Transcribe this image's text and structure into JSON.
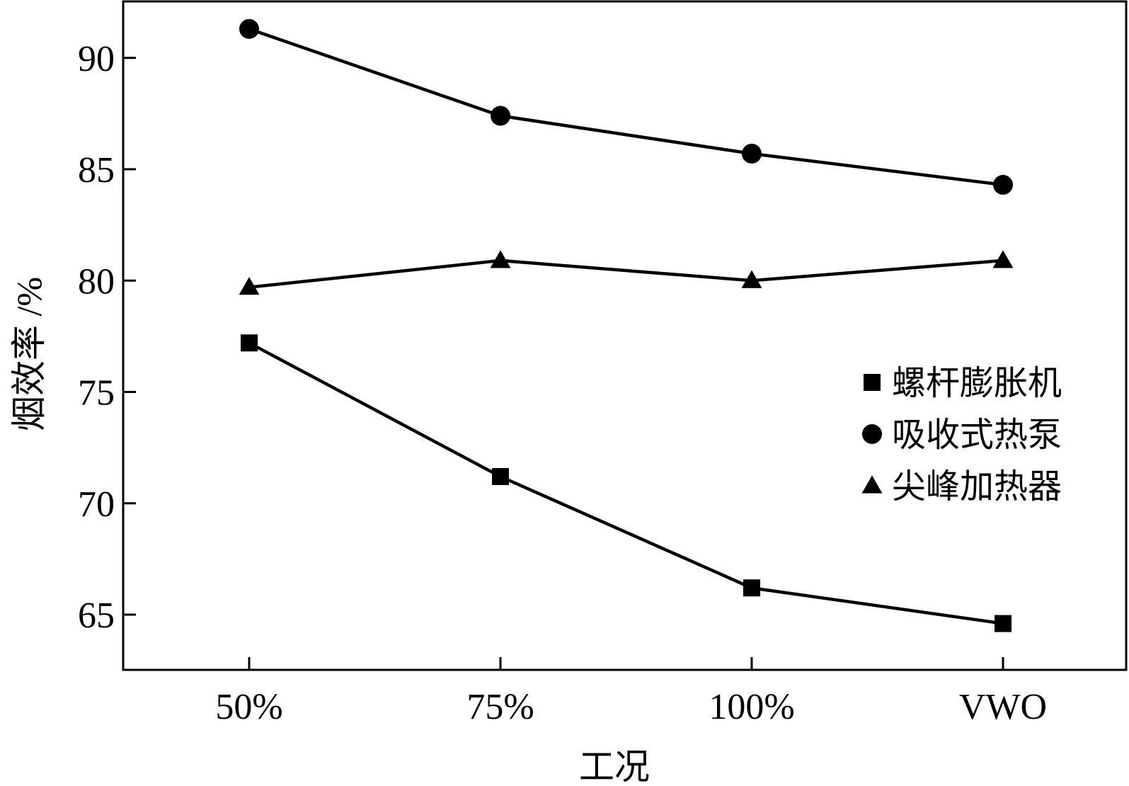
{
  "chart_data": {
    "type": "line",
    "title": "",
    "xlabel": "工况",
    "ylabel": "烟效率 /%",
    "categories": [
      "50%",
      "75%",
      "100%",
      "VWO"
    ],
    "yticks": [
      65,
      70,
      75,
      80,
      85,
      90
    ],
    "ylim": [
      61.5,
      92.5
    ],
    "grid": false,
    "legend_position": "right",
    "series": [
      {
        "name": "螺杆膨胀机",
        "marker": "square",
        "values": [
          77.2,
          71.2,
          66.2,
          64.6
        ]
      },
      {
        "name": "吸收式热泵",
        "marker": "circle",
        "values": [
          91.3,
          87.4,
          85.7,
          84.3
        ]
      },
      {
        "name": "尖峰加热器",
        "marker": "triangle",
        "values": [
          79.7,
          80.9,
          80.0,
          80.9
        ]
      }
    ],
    "line_color": "#000000"
  }
}
